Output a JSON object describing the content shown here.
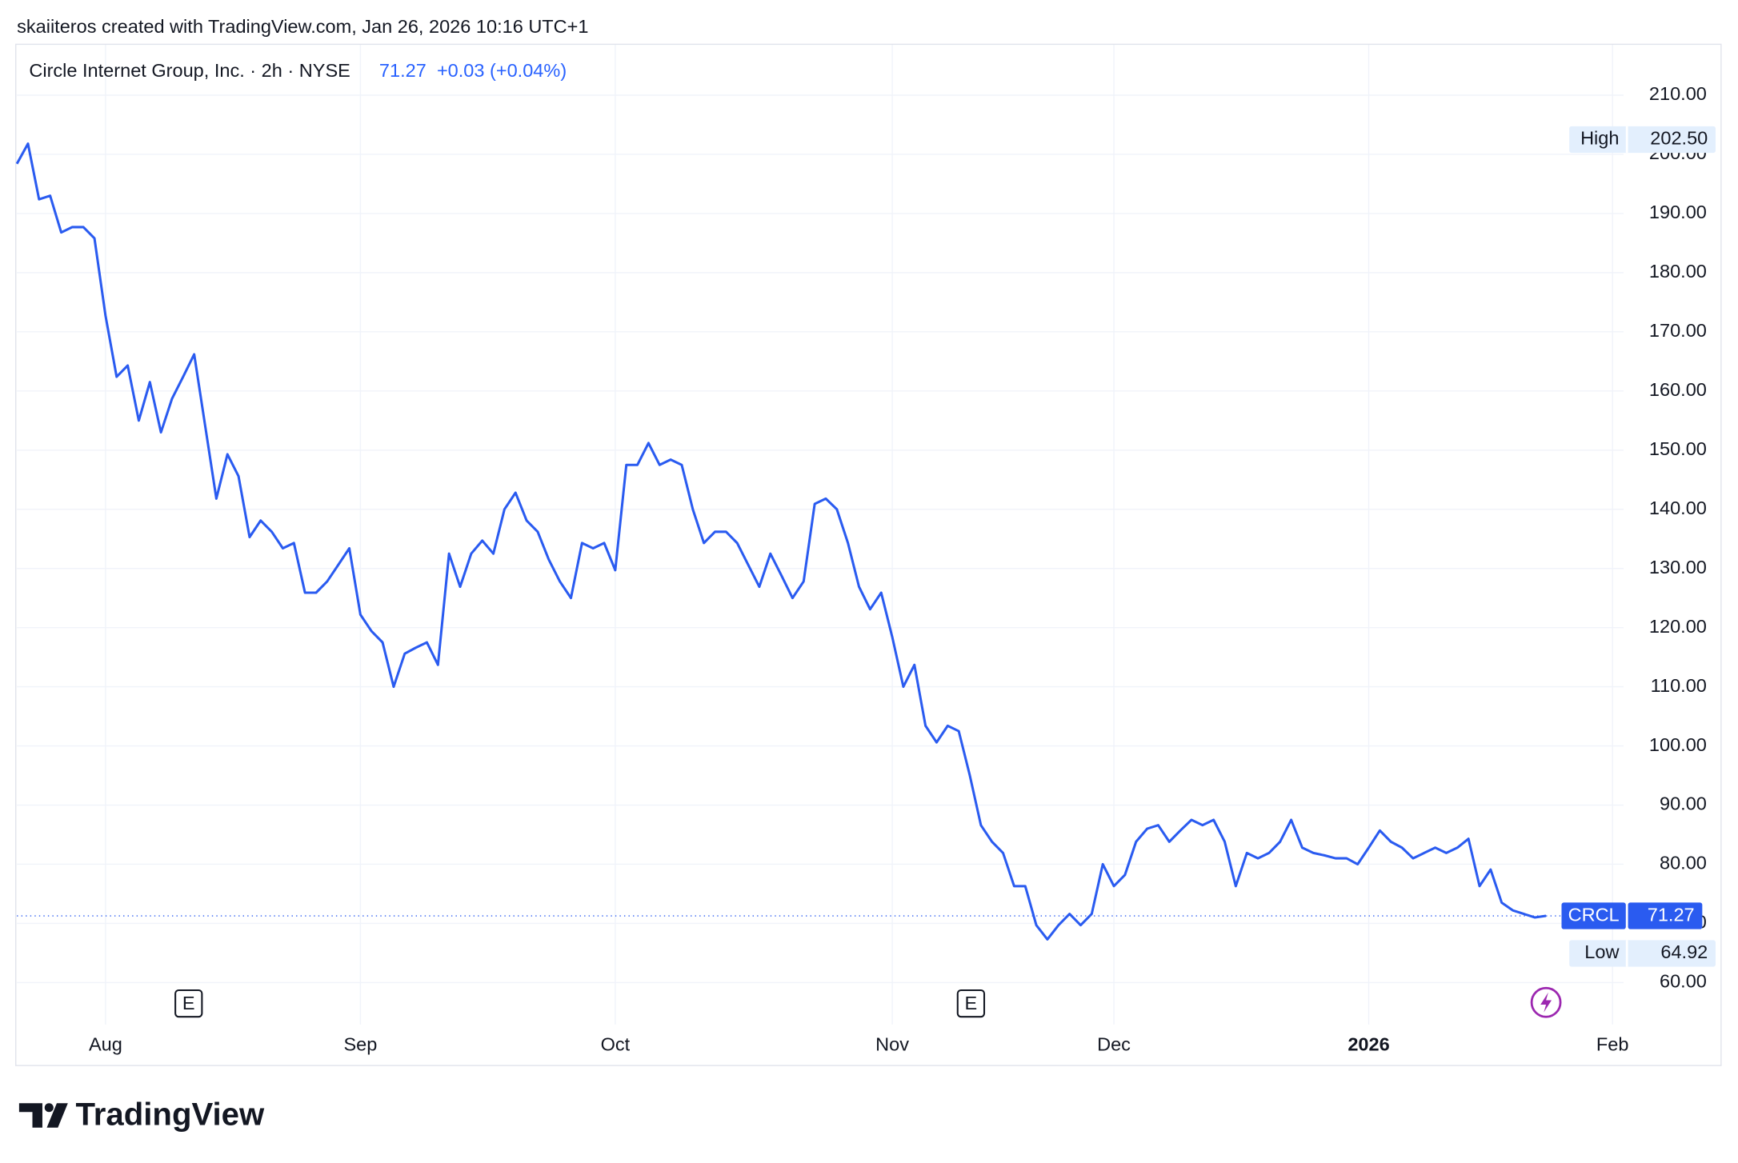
{
  "header": "skaiiteros created with TradingView.com, Jan 26, 2026 10:16 UTC+1",
  "logo": "TradingView",
  "chart_data": {
    "type": "line",
    "title": "Circle Internet Group, Inc. · 2h · NYSE",
    "price": "71.27",
    "change": "+0.03 (+0.04%)",
    "earnings_label": "E",
    "categories": [
      null,
      null,
      null,
      null,
      null,
      null,
      null,
      null,
      "Aug",
      null,
      null,
      null,
      null,
      null,
      null,
      null,
      null,
      null,
      null,
      null,
      null,
      null,
      null,
      null,
      null,
      null,
      null,
      null,
      null,
      null,
      null,
      "Sep",
      null,
      null,
      null,
      null,
      null,
      null,
      null,
      null,
      null,
      null,
      null,
      null,
      null,
      null,
      null,
      null,
      null,
      null,
      null,
      null,
      null,
      null,
      "Oct",
      null,
      null,
      null,
      null,
      null,
      null,
      null,
      null,
      null,
      null,
      null,
      null,
      null,
      null,
      null,
      null,
      null,
      null,
      null,
      null,
      null,
      null,
      null,
      null,
      "Nov",
      null,
      null,
      null,
      null,
      null,
      null,
      null,
      null,
      null,
      null,
      null,
      null,
      null,
      null,
      null,
      null,
      null,
      null,
      null,
      "Dec",
      null,
      null,
      null,
      null,
      null,
      null,
      null,
      null,
      null,
      null,
      null,
      null,
      null,
      null,
      null,
      null,
      null,
      null,
      null,
      null,
      null,
      null,
      "2026",
      null,
      null,
      null,
      null,
      null,
      null,
      null,
      null,
      null,
      null,
      null,
      null,
      null,
      null,
      null,
      null,
      null,
      null,
      null,
      null,
      null,
      "Feb"
    ],
    "series": [
      {
        "name": "CRCL",
        "color": "#2a5bf0",
        "values": [
          198.4,
          201.8,
          192.4,
          193,
          186.8,
          187.7,
          187.7,
          185.8,
          172.7,
          162.4,
          164.3,
          155,
          161.5,
          153,
          158.7,
          162.4,
          166.2,
          154,
          141.8,
          149.3,
          145.6,
          135.3,
          138.1,
          136.2,
          133.4,
          134.3,
          125.9,
          125.9,
          127.8,
          130.6,
          133.4,
          122.2,
          119.4,
          117.5,
          110,
          115.6,
          116.6,
          117.5,
          113.7,
          132.5,
          126.9,
          132.5,
          134.7,
          132.5,
          140,
          142.8,
          138.1,
          136.2,
          131.5,
          127.8,
          125,
          134.3,
          133.4,
          134.3,
          129.7,
          147.5,
          147.5,
          151.2,
          147.5,
          148.4,
          147.5,
          140,
          134.3,
          136.2,
          136.2,
          134.3,
          130.6,
          126.9,
          132.5,
          128.8,
          125,
          127.8,
          140.9,
          141.8,
          140,
          134.3,
          126.9,
          123.1,
          125.9,
          118.4,
          110,
          113.7,
          103.4,
          100.6,
          103.4,
          102.5,
          95,
          86.6,
          83.8,
          81.9,
          76.3,
          76.3,
          69.7,
          67.3,
          69.7,
          71.6,
          69.7,
          71.6,
          80,
          76.3,
          78.2,
          83.8,
          86,
          86.6,
          83.8,
          85.7,
          87.5,
          86.6,
          87.5,
          83.8,
          76.3,
          81.9,
          81,
          81.9,
          83.8,
          87.5,
          82.8,
          81.9,
          81.5,
          81,
          81,
          80,
          82.8,
          85.7,
          83.8,
          82.8,
          81,
          81.9,
          82.8,
          81.9,
          82.8,
          84.3,
          76.3,
          79.1,
          73.5,
          72.2,
          71.6,
          71,
          71.27,
          null,
          null,
          null,
          null,
          null,
          null
        ]
      }
    ],
    "ylim": [
      52.9,
      218.6
    ],
    "yticks": [
      {
        "value": 60,
        "label": "60.00"
      },
      {
        "value": 70,
        "label": "70.00"
      },
      {
        "value": 80,
        "label": "80.00"
      },
      {
        "value": 90,
        "label": "90.00"
      },
      {
        "value": 100,
        "label": "100.00"
      },
      {
        "value": 110,
        "label": "110.00"
      },
      {
        "value": 120,
        "label": "120.00"
      },
      {
        "value": 130,
        "label": "130.00"
      },
      {
        "value": 140,
        "label": "140.00"
      },
      {
        "value": 150,
        "label": "150.00"
      },
      {
        "value": 160,
        "label": "160.00"
      },
      {
        "value": 170,
        "label": "170.00"
      },
      {
        "value": 180,
        "label": "180.00"
      },
      {
        "value": 190,
        "label": "190.00"
      },
      {
        "value": 200,
        "label": "200.00"
      },
      {
        "value": 210,
        "label": "210.00"
      }
    ],
    "grid": true,
    "high": {
      "label": "High",
      "value": 202.5,
      "value_label": "202.50"
    },
    "low": {
      "label": "Low",
      "value": 64.92,
      "value_label": "64.92"
    },
    "last": {
      "label": "CRCL",
      "value": 71.27,
      "value_label": "71.27"
    }
  }
}
